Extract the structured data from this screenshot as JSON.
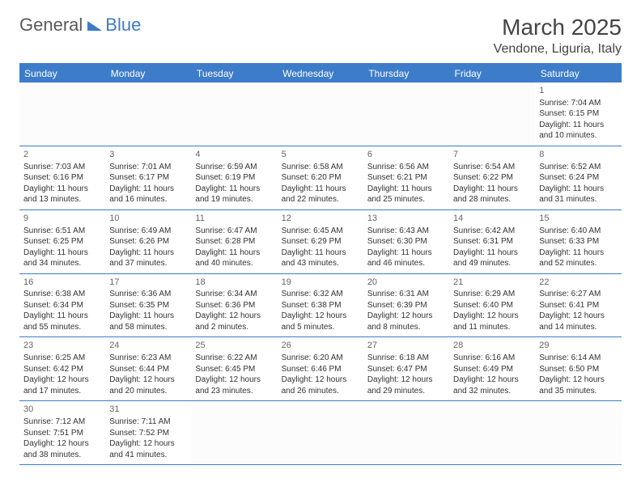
{
  "logo": {
    "general": "General",
    "blue": "Blue"
  },
  "title": "March 2025",
  "location": "Vendone, Liguria, Italy",
  "colors": {
    "accent": "#3d7cc9",
    "text": "#333333",
    "header_text": "#ffffff"
  },
  "weekdays": [
    "Sunday",
    "Monday",
    "Tuesday",
    "Wednesday",
    "Thursday",
    "Friday",
    "Saturday"
  ],
  "weeks": [
    [
      null,
      null,
      null,
      null,
      null,
      null,
      {
        "d": "1",
        "sr": "Sunrise: 7:04 AM",
        "ss": "Sunset: 6:15 PM",
        "dl": "Daylight: 11 hours and 10 minutes."
      }
    ],
    [
      {
        "d": "2",
        "sr": "Sunrise: 7:03 AM",
        "ss": "Sunset: 6:16 PM",
        "dl": "Daylight: 11 hours and 13 minutes."
      },
      {
        "d": "3",
        "sr": "Sunrise: 7:01 AM",
        "ss": "Sunset: 6:17 PM",
        "dl": "Daylight: 11 hours and 16 minutes."
      },
      {
        "d": "4",
        "sr": "Sunrise: 6:59 AM",
        "ss": "Sunset: 6:19 PM",
        "dl": "Daylight: 11 hours and 19 minutes."
      },
      {
        "d": "5",
        "sr": "Sunrise: 6:58 AM",
        "ss": "Sunset: 6:20 PM",
        "dl": "Daylight: 11 hours and 22 minutes."
      },
      {
        "d": "6",
        "sr": "Sunrise: 6:56 AM",
        "ss": "Sunset: 6:21 PM",
        "dl": "Daylight: 11 hours and 25 minutes."
      },
      {
        "d": "7",
        "sr": "Sunrise: 6:54 AM",
        "ss": "Sunset: 6:22 PM",
        "dl": "Daylight: 11 hours and 28 minutes."
      },
      {
        "d": "8",
        "sr": "Sunrise: 6:52 AM",
        "ss": "Sunset: 6:24 PM",
        "dl": "Daylight: 11 hours and 31 minutes."
      }
    ],
    [
      {
        "d": "9",
        "sr": "Sunrise: 6:51 AM",
        "ss": "Sunset: 6:25 PM",
        "dl": "Daylight: 11 hours and 34 minutes."
      },
      {
        "d": "10",
        "sr": "Sunrise: 6:49 AM",
        "ss": "Sunset: 6:26 PM",
        "dl": "Daylight: 11 hours and 37 minutes."
      },
      {
        "d": "11",
        "sr": "Sunrise: 6:47 AM",
        "ss": "Sunset: 6:28 PM",
        "dl": "Daylight: 11 hours and 40 minutes."
      },
      {
        "d": "12",
        "sr": "Sunrise: 6:45 AM",
        "ss": "Sunset: 6:29 PM",
        "dl": "Daylight: 11 hours and 43 minutes."
      },
      {
        "d": "13",
        "sr": "Sunrise: 6:43 AM",
        "ss": "Sunset: 6:30 PM",
        "dl": "Daylight: 11 hours and 46 minutes."
      },
      {
        "d": "14",
        "sr": "Sunrise: 6:42 AM",
        "ss": "Sunset: 6:31 PM",
        "dl": "Daylight: 11 hours and 49 minutes."
      },
      {
        "d": "15",
        "sr": "Sunrise: 6:40 AM",
        "ss": "Sunset: 6:33 PM",
        "dl": "Daylight: 11 hours and 52 minutes."
      }
    ],
    [
      {
        "d": "16",
        "sr": "Sunrise: 6:38 AM",
        "ss": "Sunset: 6:34 PM",
        "dl": "Daylight: 11 hours and 55 minutes."
      },
      {
        "d": "17",
        "sr": "Sunrise: 6:36 AM",
        "ss": "Sunset: 6:35 PM",
        "dl": "Daylight: 11 hours and 58 minutes."
      },
      {
        "d": "18",
        "sr": "Sunrise: 6:34 AM",
        "ss": "Sunset: 6:36 PM",
        "dl": "Daylight: 12 hours and 2 minutes."
      },
      {
        "d": "19",
        "sr": "Sunrise: 6:32 AM",
        "ss": "Sunset: 6:38 PM",
        "dl": "Daylight: 12 hours and 5 minutes."
      },
      {
        "d": "20",
        "sr": "Sunrise: 6:31 AM",
        "ss": "Sunset: 6:39 PM",
        "dl": "Daylight: 12 hours and 8 minutes."
      },
      {
        "d": "21",
        "sr": "Sunrise: 6:29 AM",
        "ss": "Sunset: 6:40 PM",
        "dl": "Daylight: 12 hours and 11 minutes."
      },
      {
        "d": "22",
        "sr": "Sunrise: 6:27 AM",
        "ss": "Sunset: 6:41 PM",
        "dl": "Daylight: 12 hours and 14 minutes."
      }
    ],
    [
      {
        "d": "23",
        "sr": "Sunrise: 6:25 AM",
        "ss": "Sunset: 6:42 PM",
        "dl": "Daylight: 12 hours and 17 minutes."
      },
      {
        "d": "24",
        "sr": "Sunrise: 6:23 AM",
        "ss": "Sunset: 6:44 PM",
        "dl": "Daylight: 12 hours and 20 minutes."
      },
      {
        "d": "25",
        "sr": "Sunrise: 6:22 AM",
        "ss": "Sunset: 6:45 PM",
        "dl": "Daylight: 12 hours and 23 minutes."
      },
      {
        "d": "26",
        "sr": "Sunrise: 6:20 AM",
        "ss": "Sunset: 6:46 PM",
        "dl": "Daylight: 12 hours and 26 minutes."
      },
      {
        "d": "27",
        "sr": "Sunrise: 6:18 AM",
        "ss": "Sunset: 6:47 PM",
        "dl": "Daylight: 12 hours and 29 minutes."
      },
      {
        "d": "28",
        "sr": "Sunrise: 6:16 AM",
        "ss": "Sunset: 6:49 PM",
        "dl": "Daylight: 12 hours and 32 minutes."
      },
      {
        "d": "29",
        "sr": "Sunrise: 6:14 AM",
        "ss": "Sunset: 6:50 PM",
        "dl": "Daylight: 12 hours and 35 minutes."
      }
    ],
    [
      {
        "d": "30",
        "sr": "Sunrise: 7:12 AM",
        "ss": "Sunset: 7:51 PM",
        "dl": "Daylight: 12 hours and 38 minutes."
      },
      {
        "d": "31",
        "sr": "Sunrise: 7:11 AM",
        "ss": "Sunset: 7:52 PM",
        "dl": "Daylight: 12 hours and 41 minutes."
      },
      null,
      null,
      null,
      null,
      null
    ]
  ]
}
